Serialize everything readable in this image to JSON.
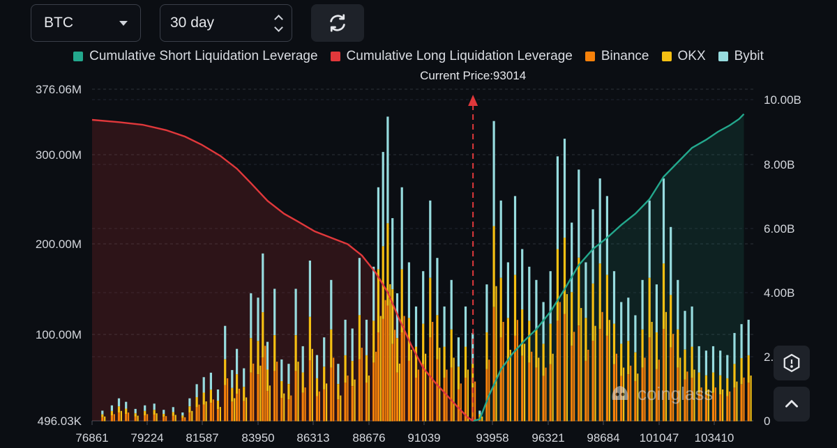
{
  "controls": {
    "symbol": "BTC",
    "period": "30 day"
  },
  "watermark": "coinglass",
  "colors": {
    "short": "#23a88d",
    "long": "#e1383b",
    "binance": "#f6810a",
    "okx": "#f6c013",
    "bybit": "#97dcdf",
    "price_marker": "#e1383b"
  },
  "icons": {
    "refresh": "refresh-icon",
    "settings": "settings-icon",
    "scroll_top": "chevron-up-icon"
  },
  "chart_data": {
    "type": "bar",
    "title": "",
    "annotation": "Current Price:93014",
    "current_price": 93014,
    "legend": [
      "Cumulative Short Liquidation Leverage",
      "Cumulative Long Liquidation Leverage",
      "Binance",
      "OKX",
      "Bybit"
    ],
    "legend_position": "top",
    "x_ticks": [
      "76861",
      "79224",
      "81587",
      "83950",
      "86313",
      "88676",
      "91039",
      "93958",
      "96321",
      "98684",
      "101047",
      "103410"
    ],
    "y_left_ticks": [
      "496.03K",
      "100.00M",
      "200.00M",
      "300.00M",
      "376.06M"
    ],
    "y_left_range": [
      496030,
      376060000
    ],
    "y_right_ticks": [
      "0",
      "2.",
      "4.00B",
      "6.00B",
      "8.00B",
      "10.00B"
    ],
    "y_right_range": [
      0,
      10000000000
    ],
    "x_range": [
      76861,
      104900
    ],
    "cumulative_long": [
      [
        76861,
        9.37
      ],
      [
        78000,
        9.3
      ],
      [
        79000,
        9.22
      ],
      [
        80000,
        9.05
      ],
      [
        80800,
        8.85
      ],
      [
        81500,
        8.6
      ],
      [
        82300,
        8.25
      ],
      [
        83000,
        7.85
      ],
      [
        83600,
        7.4
      ],
      [
        84300,
        6.85
      ],
      [
        85000,
        6.45
      ],
      [
        85600,
        6.2
      ],
      [
        86300,
        5.9
      ],
      [
        87000,
        5.7
      ],
      [
        87700,
        5.5
      ],
      [
        88300,
        5.15
      ],
      [
        88900,
        4.6
      ],
      [
        89400,
        4.0
      ],
      [
        89900,
        3.15
      ],
      [
        90400,
        2.35
      ],
      [
        90900,
        1.65
      ],
      [
        91400,
        1.2
      ],
      [
        91900,
        0.8
      ],
      [
        92400,
        0.4
      ],
      [
        92800,
        0.1
      ],
      [
        93014,
        0.0
      ]
    ],
    "cumulative_short": [
      [
        93014,
        0.0
      ],
      [
        93300,
        0.05
      ],
      [
        93700,
        0.8
      ],
      [
        94200,
        1.6
      ],
      [
        94700,
        2.1
      ],
      [
        95200,
        2.5
      ],
      [
        95700,
        2.85
      ],
      [
        96300,
        3.4
      ],
      [
        96900,
        4.1
      ],
      [
        97500,
        4.85
      ],
      [
        98100,
        5.35
      ],
      [
        98700,
        5.7
      ],
      [
        99300,
        6.1
      ],
      [
        99900,
        6.45
      ],
      [
        100500,
        6.9
      ],
      [
        101100,
        7.6
      ],
      [
        101700,
        8.05
      ],
      [
        102300,
        8.5
      ],
      [
        102900,
        8.75
      ],
      [
        103400,
        9.0
      ],
      [
        103900,
        9.2
      ],
      [
        104300,
        9.4
      ],
      [
        104500,
        9.55
      ]
    ],
    "cumulative_unit": "B",
    "bar_series": [
      {
        "name": "Binance",
        "note": "bottom stack",
        "peak_millions": 240
      },
      {
        "name": "OKX",
        "note": "middle stack",
        "peak_millions": 290
      },
      {
        "name": "Bybit",
        "note": "top stack",
        "peak_millions": 342
      }
    ],
    "bar_totals_millions": [
      [
        77300,
        12
      ],
      [
        77700,
        18
      ],
      [
        78000,
        26
      ],
      [
        78300,
        22
      ],
      [
        78700,
        14
      ],
      [
        79100,
        18
      ],
      [
        79500,
        20
      ],
      [
        79900,
        13
      ],
      [
        80300,
        16
      ],
      [
        80700,
        10
      ],
      [
        81000,
        26
      ],
      [
        81300,
        42
      ],
      [
        81600,
        50
      ],
      [
        81900,
        55
      ],
      [
        82200,
        36
      ],
      [
        82500,
        108
      ],
      [
        82800,
        58
      ],
      [
        83000,
        82
      ],
      [
        83300,
        60
      ],
      [
        83600,
        145
      ],
      [
        83900,
        140
      ],
      [
        84100,
        190
      ],
      [
        84300,
        90
      ],
      [
        84600,
        150
      ],
      [
        84900,
        70
      ],
      [
        85200,
        65
      ],
      [
        85500,
        150
      ],
      [
        85800,
        85
      ],
      [
        86100,
        182
      ],
      [
        86400,
        75
      ],
      [
        86700,
        95
      ],
      [
        87000,
        160
      ],
      [
        87300,
        65
      ],
      [
        87600,
        115
      ],
      [
        87900,
        105
      ],
      [
        88200,
        185
      ],
      [
        88500,
        115
      ],
      [
        88800,
        175
      ],
      [
        89000,
        265
      ],
      [
        89200,
        305
      ],
      [
        89400,
        345
      ],
      [
        89600,
        230
      ],
      [
        89800,
        145
      ],
      [
        90000,
        265
      ],
      [
        90300,
        180
      ],
      [
        90600,
        130
      ],
      [
        90900,
        170
      ],
      [
        91200,
        250
      ],
      [
        91500,
        185
      ],
      [
        91800,
        130
      ],
      [
        92100,
        160
      ],
      [
        92400,
        95
      ],
      [
        92700,
        130
      ],
      [
        93000,
        100
      ],
      [
        93300,
        12
      ],
      [
        93600,
        155
      ],
      [
        93900,
        340
      ],
      [
        94200,
        250
      ],
      [
        94500,
        180
      ],
      [
        94800,
        255
      ],
      [
        95100,
        195
      ],
      [
        95400,
        175
      ],
      [
        95700,
        160
      ],
      [
        96000,
        135
      ],
      [
        96300,
        170
      ],
      [
        96600,
        300
      ],
      [
        96900,
        320
      ],
      [
        97200,
        225
      ],
      [
        97500,
        285
      ],
      [
        97800,
        180
      ],
      [
        98100,
        240
      ],
      [
        98400,
        275
      ],
      [
        98700,
        255
      ],
      [
        99000,
        170
      ],
      [
        99300,
        135
      ],
      [
        99600,
        140
      ],
      [
        99900,
        120
      ],
      [
        100200,
        160
      ],
      [
        100500,
        250
      ],
      [
        100800,
        155
      ],
      [
        101100,
        275
      ],
      [
        101400,
        220
      ],
      [
        101700,
        160
      ],
      [
        102000,
        125
      ],
      [
        102300,
        130
      ],
      [
        102600,
        85
      ],
      [
        102900,
        80
      ],
      [
        103200,
        85
      ],
      [
        103500,
        80
      ],
      [
        103800,
        75
      ],
      [
        104100,
        100
      ],
      [
        104400,
        110
      ],
      [
        104700,
        115
      ]
    ]
  }
}
